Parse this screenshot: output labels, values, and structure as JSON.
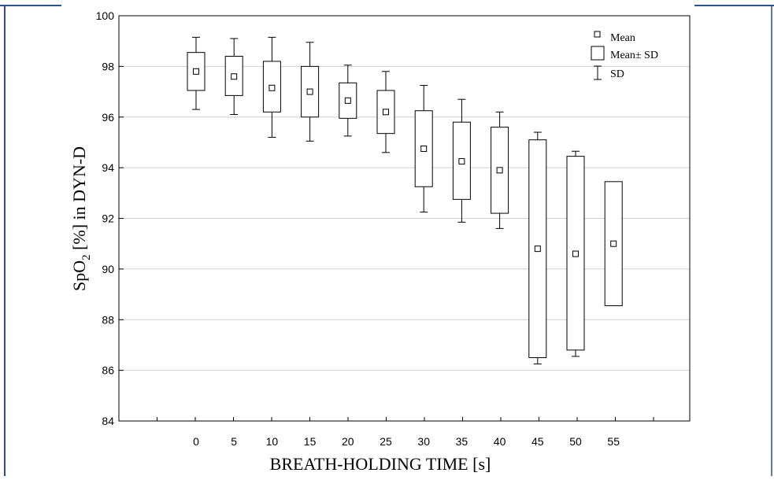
{
  "colors": {
    "frame_line": "#2f4f8f",
    "axis": "#000000",
    "grid": "#d0d0d0",
    "box_stroke": "#000000"
  },
  "chart_data": {
    "type": "box",
    "title": "",
    "xlabel": "BREATH-HOLDING TIME [s]",
    "ylabel_parts": {
      "prefix": "SpO",
      "subscript": "2",
      "suffix": " [%] in DYN-D"
    },
    "ylim": [
      84,
      100
    ],
    "yticks": [
      84,
      86,
      88,
      90,
      92,
      94,
      96,
      98,
      100
    ],
    "grid": "horizontal",
    "legend_position": "top-right",
    "legend": {
      "mean": "Mean",
      "box": "Mean± SD",
      "whisker": "SD"
    },
    "categories": [
      "0",
      "5",
      "10",
      "15",
      "20",
      "25",
      "30",
      "35",
      "40",
      "45",
      "50",
      "55"
    ],
    "series": [
      {
        "x": "0",
        "mean": 97.8,
        "box_low": 97.05,
        "box_high": 98.55,
        "whisker_low": 96.3,
        "whisker_high": 99.15
      },
      {
        "x": "5",
        "mean": 97.6,
        "box_low": 96.85,
        "box_high": 98.4,
        "whisker_low": 96.1,
        "whisker_high": 99.1
      },
      {
        "x": "10",
        "mean": 97.15,
        "box_low": 96.2,
        "box_high": 98.2,
        "whisker_low": 95.2,
        "whisker_high": 99.15
      },
      {
        "x": "15",
        "mean": 97.0,
        "box_low": 96.0,
        "box_high": 98.0,
        "whisker_low": 95.05,
        "whisker_high": 98.95
      },
      {
        "x": "20",
        "mean": 96.65,
        "box_low": 95.95,
        "box_high": 97.35,
        "whisker_low": 95.25,
        "whisker_high": 98.05
      },
      {
        "x": "25",
        "mean": 96.2,
        "box_low": 95.35,
        "box_high": 97.05,
        "whisker_low": 94.6,
        "whisker_high": 97.8
      },
      {
        "x": "30",
        "mean": 94.75,
        "box_low": 93.25,
        "box_high": 96.25,
        "whisker_low": 92.25,
        "whisker_high": 97.25
      },
      {
        "x": "35",
        "mean": 94.25,
        "box_low": 92.75,
        "box_high": 95.8,
        "whisker_low": 91.85,
        "whisker_high": 96.7
      },
      {
        "x": "40",
        "mean": 93.9,
        "box_low": 92.2,
        "box_high": 95.6,
        "whisker_low": 91.6,
        "whisker_high": 96.2
      },
      {
        "x": "45",
        "mean": 90.8,
        "box_low": 86.5,
        "box_high": 95.1,
        "whisker_low": 86.25,
        "whisker_high": 95.4
      },
      {
        "x": "50",
        "mean": 90.6,
        "box_low": 86.8,
        "box_high": 94.45,
        "whisker_low": 86.55,
        "whisker_high": 94.65
      },
      {
        "x": "55",
        "mean": 91.0,
        "box_low": 88.55,
        "box_high": 93.45,
        "whisker_low": null,
        "whisker_high": null
      }
    ]
  }
}
